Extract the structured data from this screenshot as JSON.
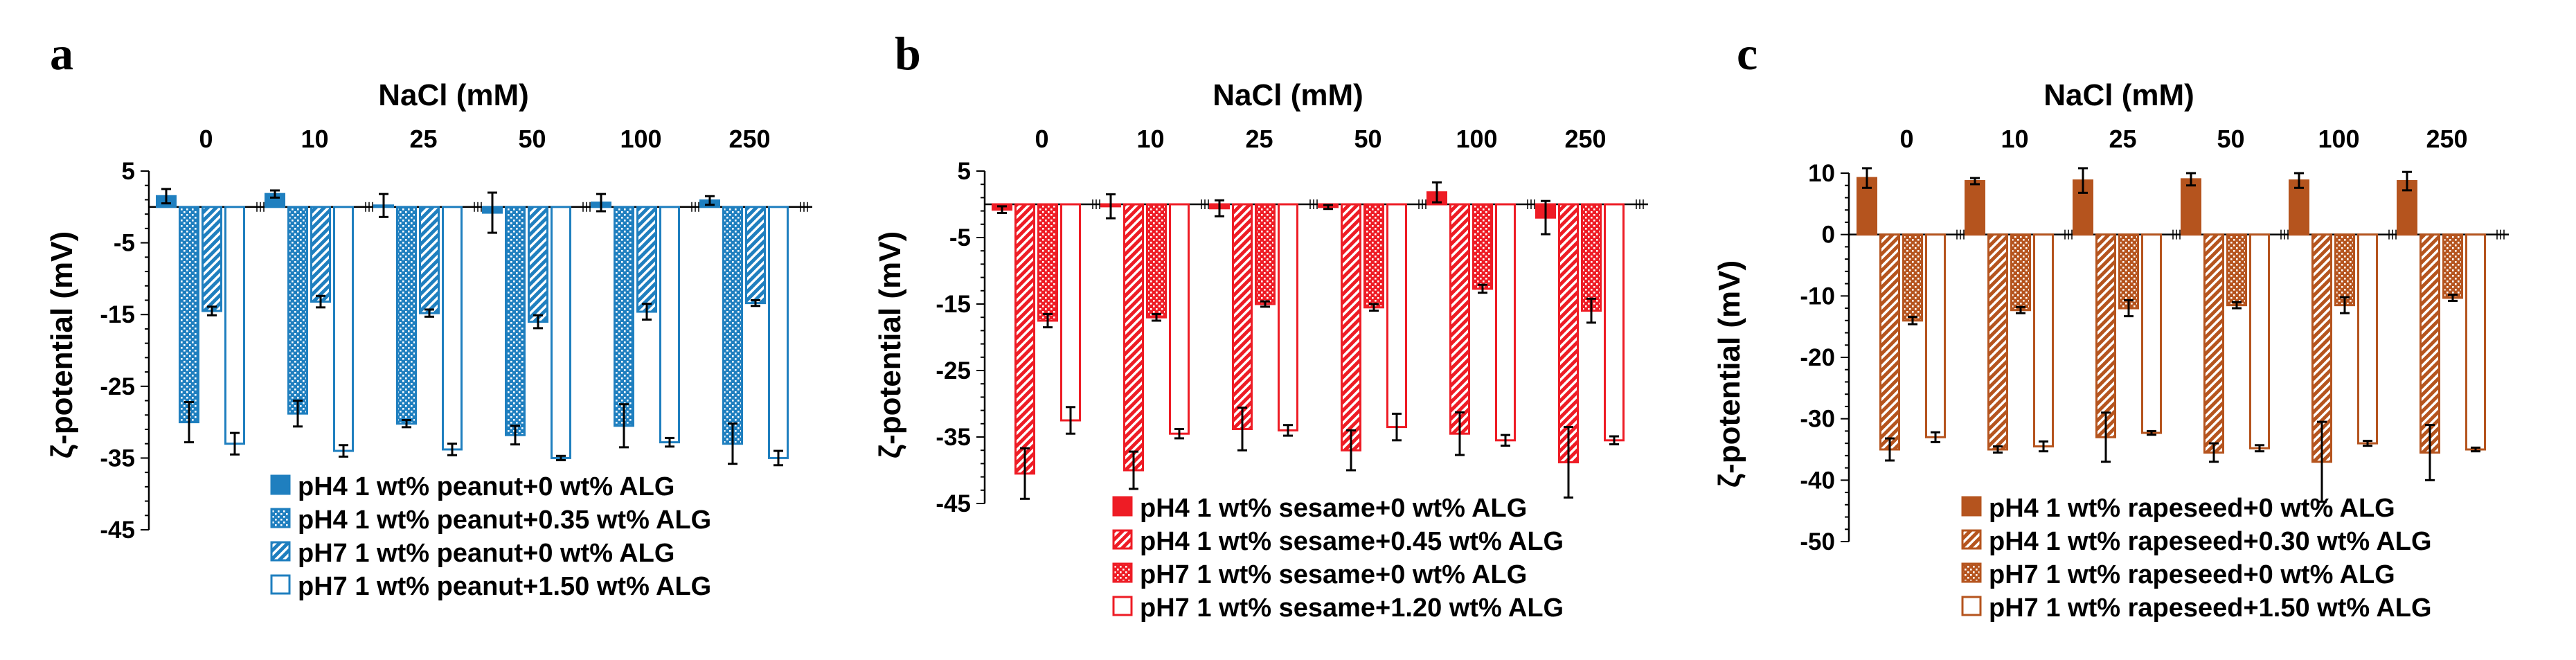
{
  "chart_data": [
    {
      "panel": "a",
      "type": "bar",
      "xlabel": "NaCl (mM)",
      "ylabel": "ζ-potential (mV)",
      "ylim": [
        -45,
        5
      ],
      "yticks": [
        5,
        -5,
        -15,
        -25,
        -35,
        -45
      ],
      "categories": [
        "0",
        "10",
        "25",
        "50",
        "100",
        "250"
      ],
      "color": "#1f7fbf",
      "series": [
        {
          "name": "pH4 1 wt% peanut+0 wt% ALG",
          "pattern": "solid",
          "values": [
            1.5,
            1.8,
            0.2,
            -0.8,
            0.6,
            0.9
          ],
          "errors": [
            1.0,
            0.5,
            1.6,
            2.8,
            1.2,
            0.6
          ]
        },
        {
          "name": "pH4 1 wt% peanut+0.35 wt% ALG",
          "pattern": "dots",
          "values": [
            -30.0,
            -28.8,
            -30.2,
            -31.8,
            -30.5,
            -33.0
          ],
          "errors": [
            2.8,
            1.8,
            0.5,
            1.3,
            3.0,
            2.8
          ]
        },
        {
          "name": "pH7 1 wt% peanut+0 wt% ALG",
          "pattern": "stripes",
          "values": [
            -14.5,
            -13.2,
            -14.8,
            -16.0,
            -14.6,
            -13.4
          ],
          "errors": [
            0.6,
            0.8,
            0.5,
            0.9,
            1.1,
            0.4
          ]
        },
        {
          "name": "pH7 1 wt% peanut+1.50 wt% ALG",
          "pattern": "open",
          "values": [
            -33.0,
            -34.0,
            -33.8,
            -35.0,
            -32.8,
            -35.0
          ],
          "errors": [
            1.5,
            0.8,
            0.8,
            0.3,
            0.6,
            1.0
          ]
        }
      ]
    },
    {
      "panel": "b",
      "type": "bar",
      "xlabel": "NaCl (mM)",
      "ylabel": "ζ-potential (mV)",
      "ylim": [
        -45,
        5
      ],
      "yticks": [
        5,
        -5,
        -15,
        -25,
        -35,
        -45
      ],
      "categories": [
        "0",
        "10",
        "25",
        "50",
        "100",
        "250"
      ],
      "color": "#ee1c25",
      "series": [
        {
          "name": "pH4 1 wt% sesame+0 wt% ALG",
          "pattern": "solid",
          "values": [
            -0.8,
            -0.3,
            -0.6,
            -0.4,
            1.8,
            -2.0
          ],
          "errors": [
            0.5,
            1.8,
            1.2,
            0.3,
            1.5,
            2.5
          ]
        },
        {
          "name": "pH4 1 wt% sesame+0.45 wt% ALG",
          "pattern": "stripes",
          "values": [
            -40.5,
            -40.0,
            -33.8,
            -37.0,
            -34.5,
            -38.8
          ],
          "errors": [
            3.8,
            2.8,
            3.2,
            3.0,
            3.2,
            5.3
          ]
        },
        {
          "name": "pH7 1 wt% sesame+0 wt% ALG",
          "pattern": "dots",
          "values": [
            -17.5,
            -17.0,
            -15.0,
            -15.5,
            -12.7,
            -16.0
          ],
          "errors": [
            1.0,
            0.5,
            0.4,
            0.5,
            0.6,
            1.8
          ]
        },
        {
          "name": "pH7 1 wt% sesame+1.20 wt% ALG",
          "pattern": "open",
          "values": [
            -32.5,
            -34.5,
            -34.0,
            -33.5,
            -35.5,
            -35.5
          ],
          "errors": [
            2.0,
            0.7,
            0.8,
            2.0,
            0.8,
            0.6
          ]
        }
      ]
    },
    {
      "panel": "c",
      "type": "bar",
      "xlabel": "NaCl (mM)",
      "ylabel": "ζ-potential (mV)",
      "ylim": [
        -50,
        10
      ],
      "yticks": [
        10,
        0,
        -10,
        -20,
        -30,
        -40,
        -50
      ],
      "categories": [
        "0",
        "10",
        "25",
        "50",
        "100",
        "250"
      ],
      "color": "#b5541e",
      "series": [
        {
          "name": "pH4 1 wt% rapeseed+0 wt% ALG",
          "pattern": "solid",
          "values": [
            9.2,
            8.7,
            8.8,
            9.0,
            8.8,
            8.7
          ],
          "errors": [
            1.6,
            0.5,
            2.0,
            1.0,
            1.2,
            1.5
          ]
        },
        {
          "name": "pH4 1 wt% rapeseed+0.30 wt% ALG",
          "pattern": "stripes",
          "values": [
            -35.0,
            -35.0,
            -33.0,
            -35.5,
            -37.0,
            -35.5
          ],
          "errors": [
            1.8,
            0.5,
            4.0,
            1.5,
            6.5,
            4.5
          ]
        },
        {
          "name": "pH7 1 wt% rapeseed+0 wt% ALG",
          "pattern": "dots",
          "values": [
            -14.0,
            -12.3,
            -12.0,
            -11.5,
            -11.5,
            -10.3
          ],
          "errors": [
            0.6,
            0.5,
            1.3,
            0.5,
            1.3,
            0.5
          ]
        },
        {
          "name": "pH7 1 wt% rapeseed+1.50 wt% ALG",
          "pattern": "open",
          "values": [
            -33.0,
            -34.5,
            -32.3,
            -34.8,
            -34.0,
            -35.0
          ],
          "errors": [
            0.8,
            0.8,
            0.3,
            0.5,
            0.4,
            0.3
          ]
        }
      ]
    }
  ]
}
